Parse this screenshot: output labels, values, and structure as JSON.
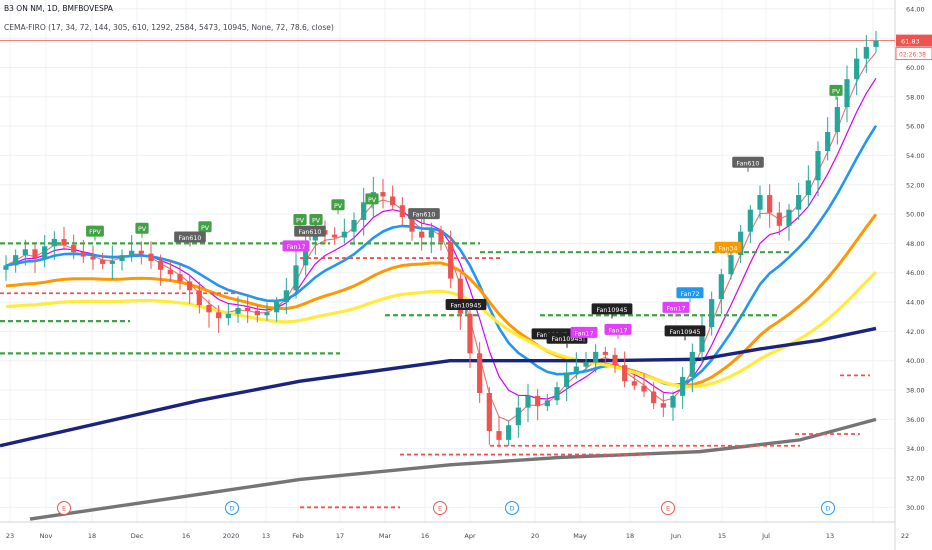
{
  "header": {
    "symbol_line": "B3 ON NM, 1D, BMFBOVESPA",
    "indicator_line": "CEMA-FIRO (17, 34, 72, 144, 305, 610, 1292, 2584, 5473, 10945, None, 72, 78.6, close)"
  },
  "price_axis": {
    "ticks": [
      "64.00",
      "62.00",
      "60.00",
      "58.00",
      "56.00",
      "54.00",
      "52.00",
      "50.00",
      "48.00",
      "46.00",
      "44.00",
      "42.00",
      "40.00",
      "38.00",
      "36.00",
      "34.00",
      "32.00",
      "30.00"
    ],
    "last_price_label": "61.83",
    "countdown_label": "02:26:38",
    "last_price_color": "#ef5350"
  },
  "time_axis": {
    "labels": [
      "23",
      "Nov",
      "18",
      "Dec",
      "16",
      "2020",
      "13",
      "Feb",
      "17",
      "Mar",
      "16",
      "Apr",
      "20",
      "May",
      "18",
      "Jun",
      "15",
      "Jul",
      "13",
      "22"
    ]
  },
  "events": {
    "e_label": "E",
    "d_label": "D"
  },
  "chart_data": {
    "type": "candlestick",
    "ylim": [
      29,
      64.6
    ],
    "grid": true,
    "candle_colors": {
      "up": "#26a69a",
      "down": "#ef5350"
    },
    "closes_approx": [
      46.5,
      47.2,
      47.6,
      47.0,
      47.8,
      48.3,
      47.9,
      47.4,
      47.1,
      46.9,
      46.6,
      46.8,
      47.2,
      47.5,
      47.3,
      46.8,
      46.2,
      45.9,
      45.4,
      44.8,
      43.8,
      43.3,
      42.9,
      43.2,
      43.6,
      43.4,
      43.1,
      43.3,
      44.0,
      44.8,
      46.5,
      48.2,
      48.9,
      48.6,
      48.4,
      48.8,
      49.6,
      50.8,
      51.5,
      51.2,
      50.6,
      49.8,
      48.8,
      48.4,
      48.9,
      48.1,
      45.6,
      43.2,
      40.5,
      37.8,
      35.2,
      34.6,
      35.6,
      36.8,
      37.6,
      36.9,
      37.3,
      38.2,
      39.2,
      39.6,
      39.9,
      40.6,
      40.4,
      39.7,
      38.6,
      38.3,
      37.9,
      37.1,
      36.8,
      37.6,
      38.9,
      40.6,
      42.3,
      44.2,
      45.9,
      47.2,
      48.8,
      50.3,
      51.3,
      50.1,
      49.2,
      50.3,
      51.3,
      52.3,
      54.3,
      55.6,
      57.3,
      59.2,
      60.6,
      61.4,
      61.83
    ],
    "moving_averages": [
      {
        "name": "EMA 17",
        "color": "#e57373"
      },
      {
        "name": "EMA 34",
        "color": "#d500f9"
      },
      {
        "name": "EMA 72",
        "color": "#2196f3"
      },
      {
        "name": "EMA 144",
        "color": "#ff9800"
      },
      {
        "name": "EMA 305",
        "color": "#ffeb3b"
      },
      {
        "name": "EMA 610",
        "color": "#1a237e"
      },
      {
        "name": "EMA 1292",
        "color": "#757575"
      }
    ],
    "labels": [
      {
        "text": "FPV",
        "color": "#43a047"
      },
      {
        "text": "PV",
        "color": "#43a047"
      },
      {
        "text": "Fan610",
        "color": "#616161"
      },
      {
        "text": "Fan17",
        "color": "#e040fb"
      },
      {
        "text": "Fan34",
        "color": "#ff9800"
      },
      {
        "text": "Fan72",
        "color": "#2196f3"
      },
      {
        "text": "Fan10945",
        "color": "#212121"
      }
    ]
  }
}
